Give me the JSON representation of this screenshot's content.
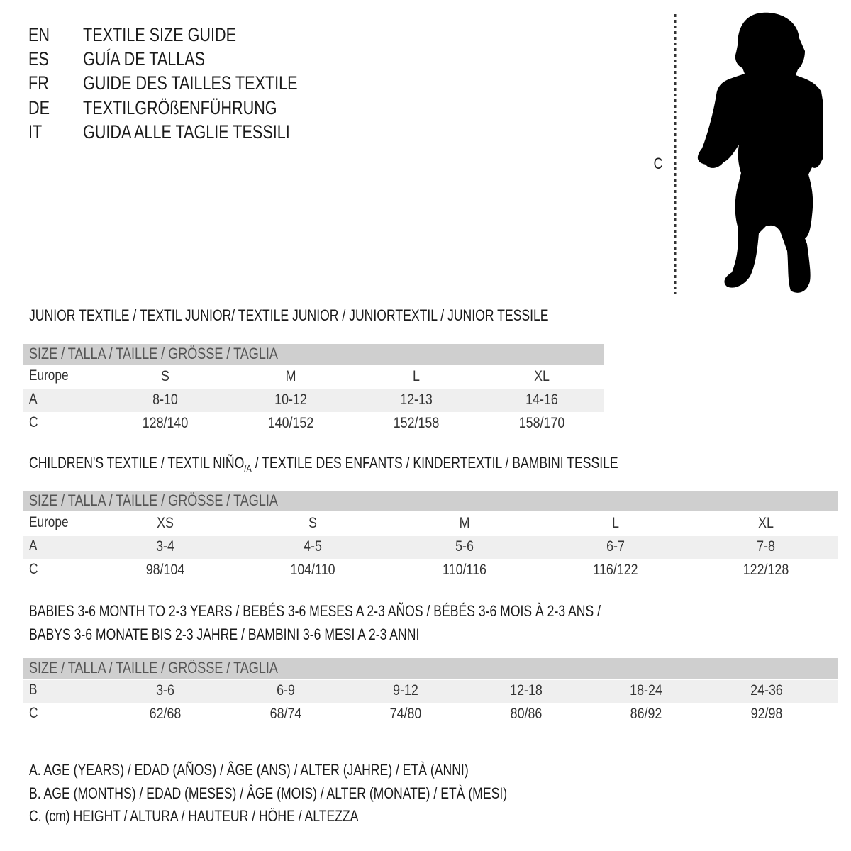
{
  "header": {
    "lines": [
      {
        "code": "EN",
        "text": "TEXTILE SIZE GUIDE"
      },
      {
        "code": "ES",
        "text": "GUÍA DE TALLAS"
      },
      {
        "code": "FR",
        "text": "GUIDE DES TAILLES TEXTILE"
      },
      {
        "code": "DE",
        "text": "TEXTILGRÖßENFÜHRUNG"
      },
      {
        "code": "IT",
        "text": "GUIDA ALLE TAGLIE TESSILI"
      }
    ]
  },
  "figure": {
    "measure_label": "C",
    "icon": "child-silhouette-icon"
  },
  "junior": {
    "title": "JUNIOR TEXTILE / TEXTIL JUNIOR/ TEXTILE JUNIOR / JUNIORTEXTIL / JUNIOR TESSILE",
    "band": "SIZE / TALLA / TAILLE / GRÖSSE / TAGLIA",
    "rows": [
      {
        "label": "Europe",
        "values": [
          "S",
          "M",
          "L",
          "XL"
        ]
      },
      {
        "label": "A",
        "values": [
          "8-10",
          "10-12",
          "12-13",
          "14-16"
        ]
      },
      {
        "label": "C",
        "values": [
          "128/140",
          "140/152",
          "152/158",
          "158/170"
        ]
      }
    ]
  },
  "children": {
    "title_a": "CHILDREN'S TEXTILE / TEXTIL NIÑO",
    "title_sub": "/A",
    "title_b": " / TEXTILE DES ENFANTS / KINDERTEXTIL / BAMBINI TESSILE",
    "band": "SIZE / TALLA / TAILLE / GRÖSSE / TAGLIA",
    "rows": [
      {
        "label": "Europe",
        "values": [
          "XS",
          "S",
          "M",
          "L",
          "XL"
        ]
      },
      {
        "label": "A",
        "values": [
          "3-4",
          "4-5",
          "5-6",
          "6-7",
          "7-8"
        ]
      },
      {
        "label": "C",
        "values": [
          "98/104",
          "104/110",
          "110/116",
          "116/122",
          "122/128"
        ]
      }
    ]
  },
  "babies": {
    "title_line1": "BABIES 3-6 MONTH TO 2-3 YEARS / BEBÉS 3-6 MESES A 2-3 AÑOS / BÉBÉS 3-6 MOIS À 2-3 ANS /",
    "title_line2": "BABYS 3-6 MONATE BIS 2-3 JAHRE / BAMBINI 3-6 MESI A 2-3 ANNI",
    "band": "SIZE / TALLA / TAILLE / GRÖSSE / TAGLIA",
    "rows": [
      {
        "label": "B",
        "values": [
          "3-6",
          "6-9",
          "9-12",
          "12-18",
          "18-24",
          "24-36"
        ]
      },
      {
        "label": "C",
        "values": [
          "62/68",
          "68/74",
          "74/80",
          "80/86",
          "86/92",
          "92/98"
        ]
      }
    ]
  },
  "legend": [
    "A. AGE (YEARS) / EDAD (AÑOS) / ÂGE (ANS) / ALTER (JAHRE) / ETÀ (ANNI)",
    "B. AGE (MONTHS) / EDAD (MESES) / ÂGE (MOIS) / ALTER (MONATE) / ETÀ (MESI)",
    "C. (cm) HEIGHT / ALTURA / HAUTEUR / HÖHE / ALTEZZA"
  ]
}
